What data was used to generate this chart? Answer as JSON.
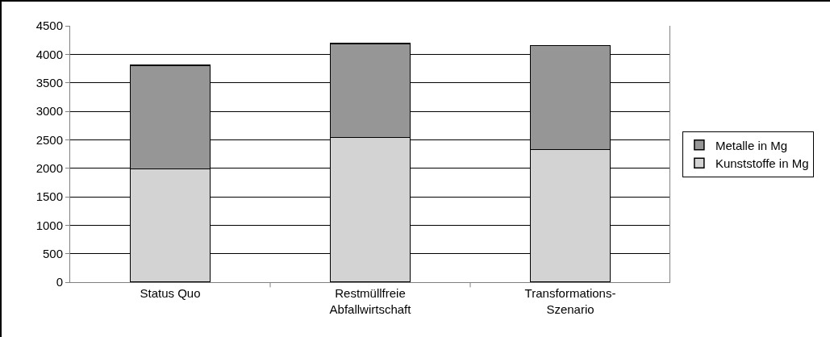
{
  "chart_data": {
    "type": "bar",
    "stacked": true,
    "categories": [
      "Status Quo",
      "Restmüllfreie\nAbfallwirtschaft",
      "Transformations-\nSzenario"
    ],
    "series": [
      {
        "name": "Kunststoffe in Mg",
        "color": "#d3d3d3",
        "values": [
          1990,
          2540,
          2330
        ]
      },
      {
        "name": "Metalle in Mg",
        "color": "#969696",
        "values": [
          1820,
          1650,
          1820
        ]
      }
    ],
    "ylim": [
      0,
      4500
    ],
    "yticks": [
      0,
      500,
      1000,
      1500,
      2000,
      2500,
      3000,
      3500,
      4000,
      4500
    ],
    "grid": "y",
    "legend": "right"
  }
}
